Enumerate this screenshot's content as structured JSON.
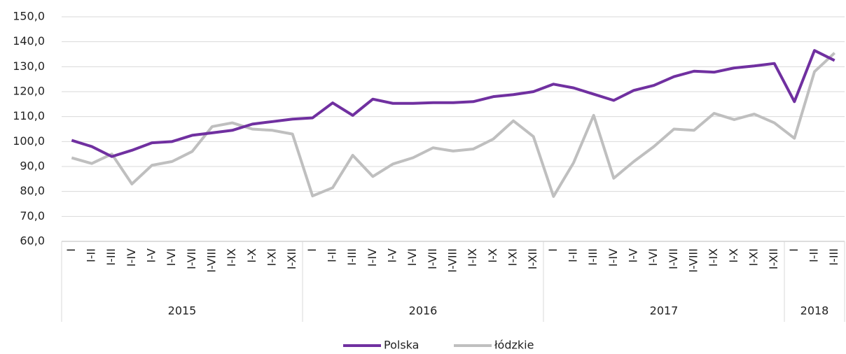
{
  "chart_data": {
    "type": "line",
    "categories": [
      "I",
      "I-II",
      "I-III",
      "I-IV",
      "I-V",
      "I-VI",
      "I-VII",
      "I-VIII",
      "I-IX",
      "I-X",
      "I-XI",
      "I-XII",
      "I",
      "I-II",
      "I-III",
      "I-IV",
      "I-V",
      "I-VI",
      "I-VII",
      "I-VIII",
      "I-IX",
      "I-X",
      "I-XI",
      "I-XII",
      "I",
      "I-II",
      "I-III",
      "I-IV",
      "I-V",
      "I-VI",
      "I-VII",
      "I-VIII",
      "I-IX",
      "I-X",
      "I-XI",
      "I-XII",
      "I",
      "I-II",
      "I-III"
    ],
    "category_groups": [
      "2015",
      "2016",
      "2017",
      "2018"
    ],
    "series": [
      {
        "name": "Polska",
        "color": "#7030a0",
        "values": [
          100.5,
          98,
          94,
          96.5,
          99.5,
          100,
          102.5,
          103.5,
          104.5,
          107,
          108,
          109,
          109.5,
          115.5,
          110.5,
          117,
          115.3,
          115.3,
          115.6,
          115.6,
          116,
          118,
          118.8,
          120,
          123,
          121.5,
          119,
          116.5,
          120.5,
          122.5,
          126,
          128.2,
          127.8,
          129.5,
          130.3,
          131.3,
          116,
          136.5,
          132.5
        ]
      },
      {
        "name": "łódzkie",
        "color": "#bfbfbf",
        "values": [
          93.5,
          91.2,
          95,
          83,
          90.5,
          92,
          96,
          106,
          107.5,
          105,
          104.5,
          103,
          78.2,
          81.5,
          94.5,
          86,
          91,
          93.5,
          97.5,
          96.2,
          97,
          101,
          108.3,
          102,
          78,
          91.5,
          110.5,
          85.3,
          92,
          98,
          105,
          104.5,
          111.3,
          108.8,
          111,
          107.5,
          101.3,
          128,
          135.5
        ]
      }
    ],
    "ylim": [
      60,
      150
    ],
    "yticks": [
      {
        "value": 60,
        "label": "60,0"
      },
      {
        "value": 70,
        "label": "70,0"
      },
      {
        "value": 80,
        "label": "80,0"
      },
      {
        "value": 90,
        "label": "90,0"
      },
      {
        "value": 100,
        "label": "100,0"
      },
      {
        "value": 110,
        "label": "110,0"
      },
      {
        "value": 120,
        "label": "120,0"
      },
      {
        "value": 130,
        "label": "130,0"
      },
      {
        "value": 140,
        "label": "140,0"
      },
      {
        "value": 150,
        "label": "150,0"
      }
    ],
    "grid": true,
    "legend": "bottom"
  }
}
